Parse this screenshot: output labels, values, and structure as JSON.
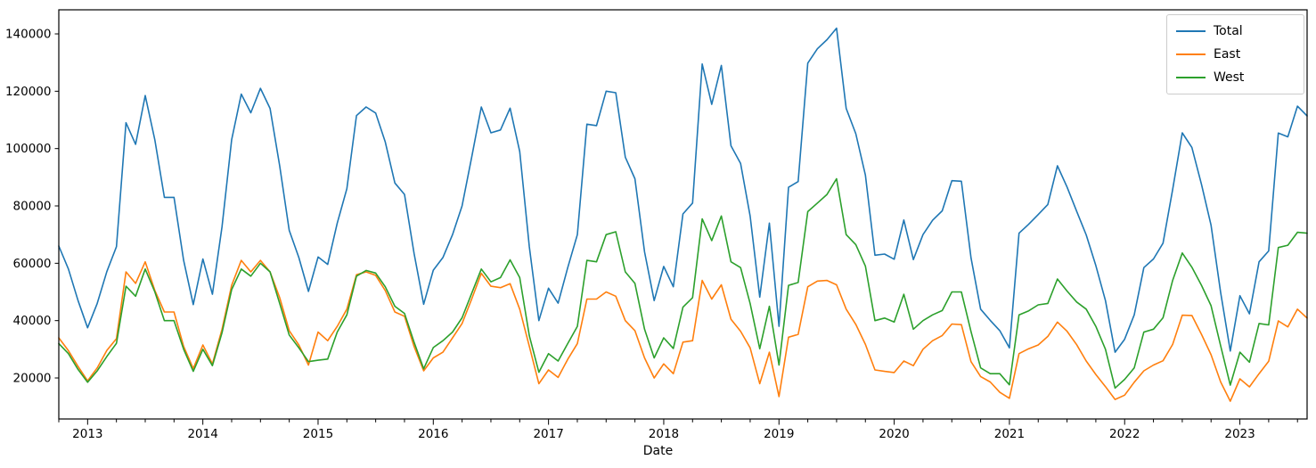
{
  "figure": {
    "background": "#ffffff",
    "spine_color": "#000000",
    "tick_color": "#000000"
  },
  "chart_data": {
    "type": "line",
    "title": "",
    "xlabel": "Date",
    "grid": false,
    "legend_position": "upper right",
    "ylim": [
      5700,
      148400
    ],
    "yticks": [
      20000,
      40000,
      60000,
      80000,
      100000,
      120000,
      140000
    ],
    "ytick_labels": [
      "20000",
      "40000",
      "60000",
      "80000",
      "100000",
      "120000",
      "140000"
    ],
    "xtick_years": [
      "2013",
      "2014",
      "2015",
      "2016",
      "2017",
      "2018",
      "2019",
      "2020",
      "2021",
      "2022",
      "2023"
    ],
    "x": [
      "2012-10",
      "2012-11",
      "2012-12",
      "2013-01",
      "2013-02",
      "2013-03",
      "2013-04",
      "2013-05",
      "2013-06",
      "2013-07",
      "2013-08",
      "2013-09",
      "2013-10",
      "2013-11",
      "2013-12",
      "2014-01",
      "2014-02",
      "2014-03",
      "2014-04",
      "2014-05",
      "2014-06",
      "2014-07",
      "2014-08",
      "2014-09",
      "2014-10",
      "2014-11",
      "2014-12",
      "2015-01",
      "2015-02",
      "2015-03",
      "2015-04",
      "2015-05",
      "2015-06",
      "2015-07",
      "2015-08",
      "2015-09",
      "2015-10",
      "2015-11",
      "2015-12",
      "2016-01",
      "2016-02",
      "2016-03",
      "2016-04",
      "2016-05",
      "2016-06",
      "2016-07",
      "2016-08",
      "2016-09",
      "2016-10",
      "2016-11",
      "2016-12",
      "2017-01",
      "2017-02",
      "2017-03",
      "2017-04",
      "2017-05",
      "2017-06",
      "2017-07",
      "2017-08",
      "2017-09",
      "2017-10",
      "2017-11",
      "2017-12",
      "2018-01",
      "2018-02",
      "2018-03",
      "2018-04",
      "2018-05",
      "2018-06",
      "2018-07",
      "2018-08",
      "2018-09",
      "2018-10",
      "2018-11",
      "2018-12",
      "2019-01",
      "2019-02",
      "2019-03",
      "2019-04",
      "2019-05",
      "2019-06",
      "2019-07",
      "2019-08",
      "2019-09",
      "2019-10",
      "2019-11",
      "2019-12",
      "2020-01",
      "2020-02",
      "2020-03",
      "2020-04",
      "2020-05",
      "2020-06",
      "2020-07",
      "2020-08",
      "2020-09",
      "2020-10",
      "2020-11",
      "2020-12",
      "2021-01",
      "2021-02",
      "2021-03",
      "2021-04",
      "2021-05",
      "2021-06",
      "2021-07",
      "2021-08",
      "2021-09",
      "2021-10",
      "2021-11",
      "2021-12",
      "2022-01",
      "2022-02",
      "2022-03",
      "2022-04",
      "2022-05",
      "2022-06",
      "2022-07",
      "2022-08",
      "2022-09",
      "2022-10",
      "2022-11",
      "2022-12",
      "2023-01",
      "2023-02",
      "2023-03",
      "2023-04",
      "2023-05",
      "2023-06",
      "2023-07",
      "2023-08"
    ],
    "series": [
      {
        "name": "Total",
        "color": "#1f77b4",
        "values": [
          66000,
          58000,
          47000,
          37500,
          46000,
          57100,
          65800,
          109000,
          101500,
          118500,
          103000,
          83000,
          83000,
          61000,
          45600,
          61500,
          49200,
          72800,
          103100,
          119000,
          112500,
          121000,
          114000,
          94000,
          71500,
          62000,
          50200,
          62200,
          59600,
          74000,
          86000,
          111500,
          114500,
          112400,
          102300,
          88000,
          84000,
          63500,
          45700,
          57600,
          62000,
          70000,
          80000,
          97000,
          114500,
          105500,
          106500,
          114100,
          99000,
          65700,
          40000,
          51300,
          46100,
          58500,
          70000,
          108500,
          108000,
          120000,
          119500,
          97000,
          89500,
          64000,
          47000,
          58900,
          51800,
          77200,
          81000,
          129500,
          115400,
          129000,
          101000,
          94800,
          76500,
          48200,
          74000,
          38000,
          86500,
          88500,
          129800,
          134800,
          138000,
          142000,
          114000,
          105200,
          90700,
          62800,
          63200,
          61400,
          75100,
          61300,
          70000,
          75000,
          78300,
          88800,
          88600,
          61900,
          44000,
          40100,
          36500,
          30500,
          70500,
          73600,
          77000,
          80500,
          94000,
          86600,
          78100,
          69900,
          59200,
          47000,
          29000,
          33500,
          42000,
          58500,
          61500,
          67000,
          85700,
          105500,
          100400,
          87500,
          73300,
          49800,
          29400,
          48700,
          42400,
          60500,
          64300,
          105400,
          104100,
          114800,
          111400
        ]
      },
      {
        "name": "East",
        "color": "#ff7f0e",
        "values": [
          34000,
          29500,
          24000,
          19000,
          23500,
          29600,
          33700,
          57000,
          53000,
          60500,
          50500,
          43000,
          43000,
          31000,
          23300,
          31500,
          24900,
          37000,
          52300,
          61000,
          57000,
          61000,
          57000,
          48000,
          36500,
          31500,
          24500,
          36000,
          33000,
          38000,
          44000,
          56000,
          57000,
          55800,
          50500,
          43000,
          41500,
          31000,
          22500,
          27000,
          29000,
          34000,
          39000,
          47500,
          56500,
          52000,
          51500,
          52900,
          44000,
          31000,
          18000,
          22800,
          20200,
          26500,
          32000,
          47500,
          47500,
          50000,
          48500,
          40000,
          36500,
          27000,
          20000,
          24900,
          21500,
          32500,
          33000,
          54000,
          47500,
          52500,
          40500,
          36300,
          30500,
          18000,
          29000,
          13500,
          34200,
          35200,
          51800,
          53800,
          54000,
          52500,
          44000,
          38700,
          31700,
          22800,
          22300,
          21900,
          25900,
          24300,
          30000,
          33000,
          34800,
          38800,
          38600,
          25700,
          20500,
          18600,
          15000,
          12900,
          28500,
          30200,
          31500,
          34500,
          39500,
          36300,
          31600,
          25900,
          21200,
          17000,
          12500,
          14000,
          18500,
          22500,
          24500,
          26000,
          31700,
          41900,
          41800,
          35200,
          28100,
          18600,
          11900,
          19700,
          16900,
          21500,
          25800,
          39900,
          37800,
          44000,
          40900
        ]
      },
      {
        "name": "West",
        "color": "#2ca02c",
        "values": [
          32000,
          28500,
          23000,
          18500,
          22500,
          27500,
          32100,
          52000,
          48500,
          58000,
          50000,
          40000,
          40000,
          30000,
          22300,
          30000,
          24300,
          35800,
          50800,
          58000,
          55500,
          60000,
          57000,
          46000,
          35000,
          30500,
          25700,
          26200,
          26600,
          36000,
          42000,
          55500,
          57500,
          56600,
          51800,
          45000,
          42500,
          32500,
          23200,
          30600,
          33000,
          36000,
          41000,
          49500,
          58000,
          53500,
          55000,
          61200,
          55000,
          34700,
          22000,
          28500,
          25900,
          32000,
          38000,
          61000,
          60500,
          70000,
          71000,
          57000,
          53000,
          37000,
          27000,
          34000,
          30300,
          44700,
          48000,
          75500,
          67900,
          76500,
          60500,
          58500,
          46000,
          30200,
          45000,
          24500,
          52300,
          53300,
          78000,
          81000,
          84000,
          89500,
          70000,
          66500,
          59000,
          40000,
          40900,
          39500,
          49200,
          37000,
          40000,
          42000,
          43500,
          50000,
          50000,
          36200,
          23500,
          21500,
          21500,
          17600,
          42000,
          43400,
          45500,
          46000,
          54500,
          50300,
          46500,
          44000,
          38000,
          30000,
          16500,
          19500,
          23500,
          36000,
          37000,
          41000,
          54000,
          63600,
          58600,
          52300,
          45200,
          31200,
          17500,
          29000,
          25500,
          39000,
          38500,
          65500,
          66300,
          70800,
          70500
        ]
      }
    ]
  }
}
